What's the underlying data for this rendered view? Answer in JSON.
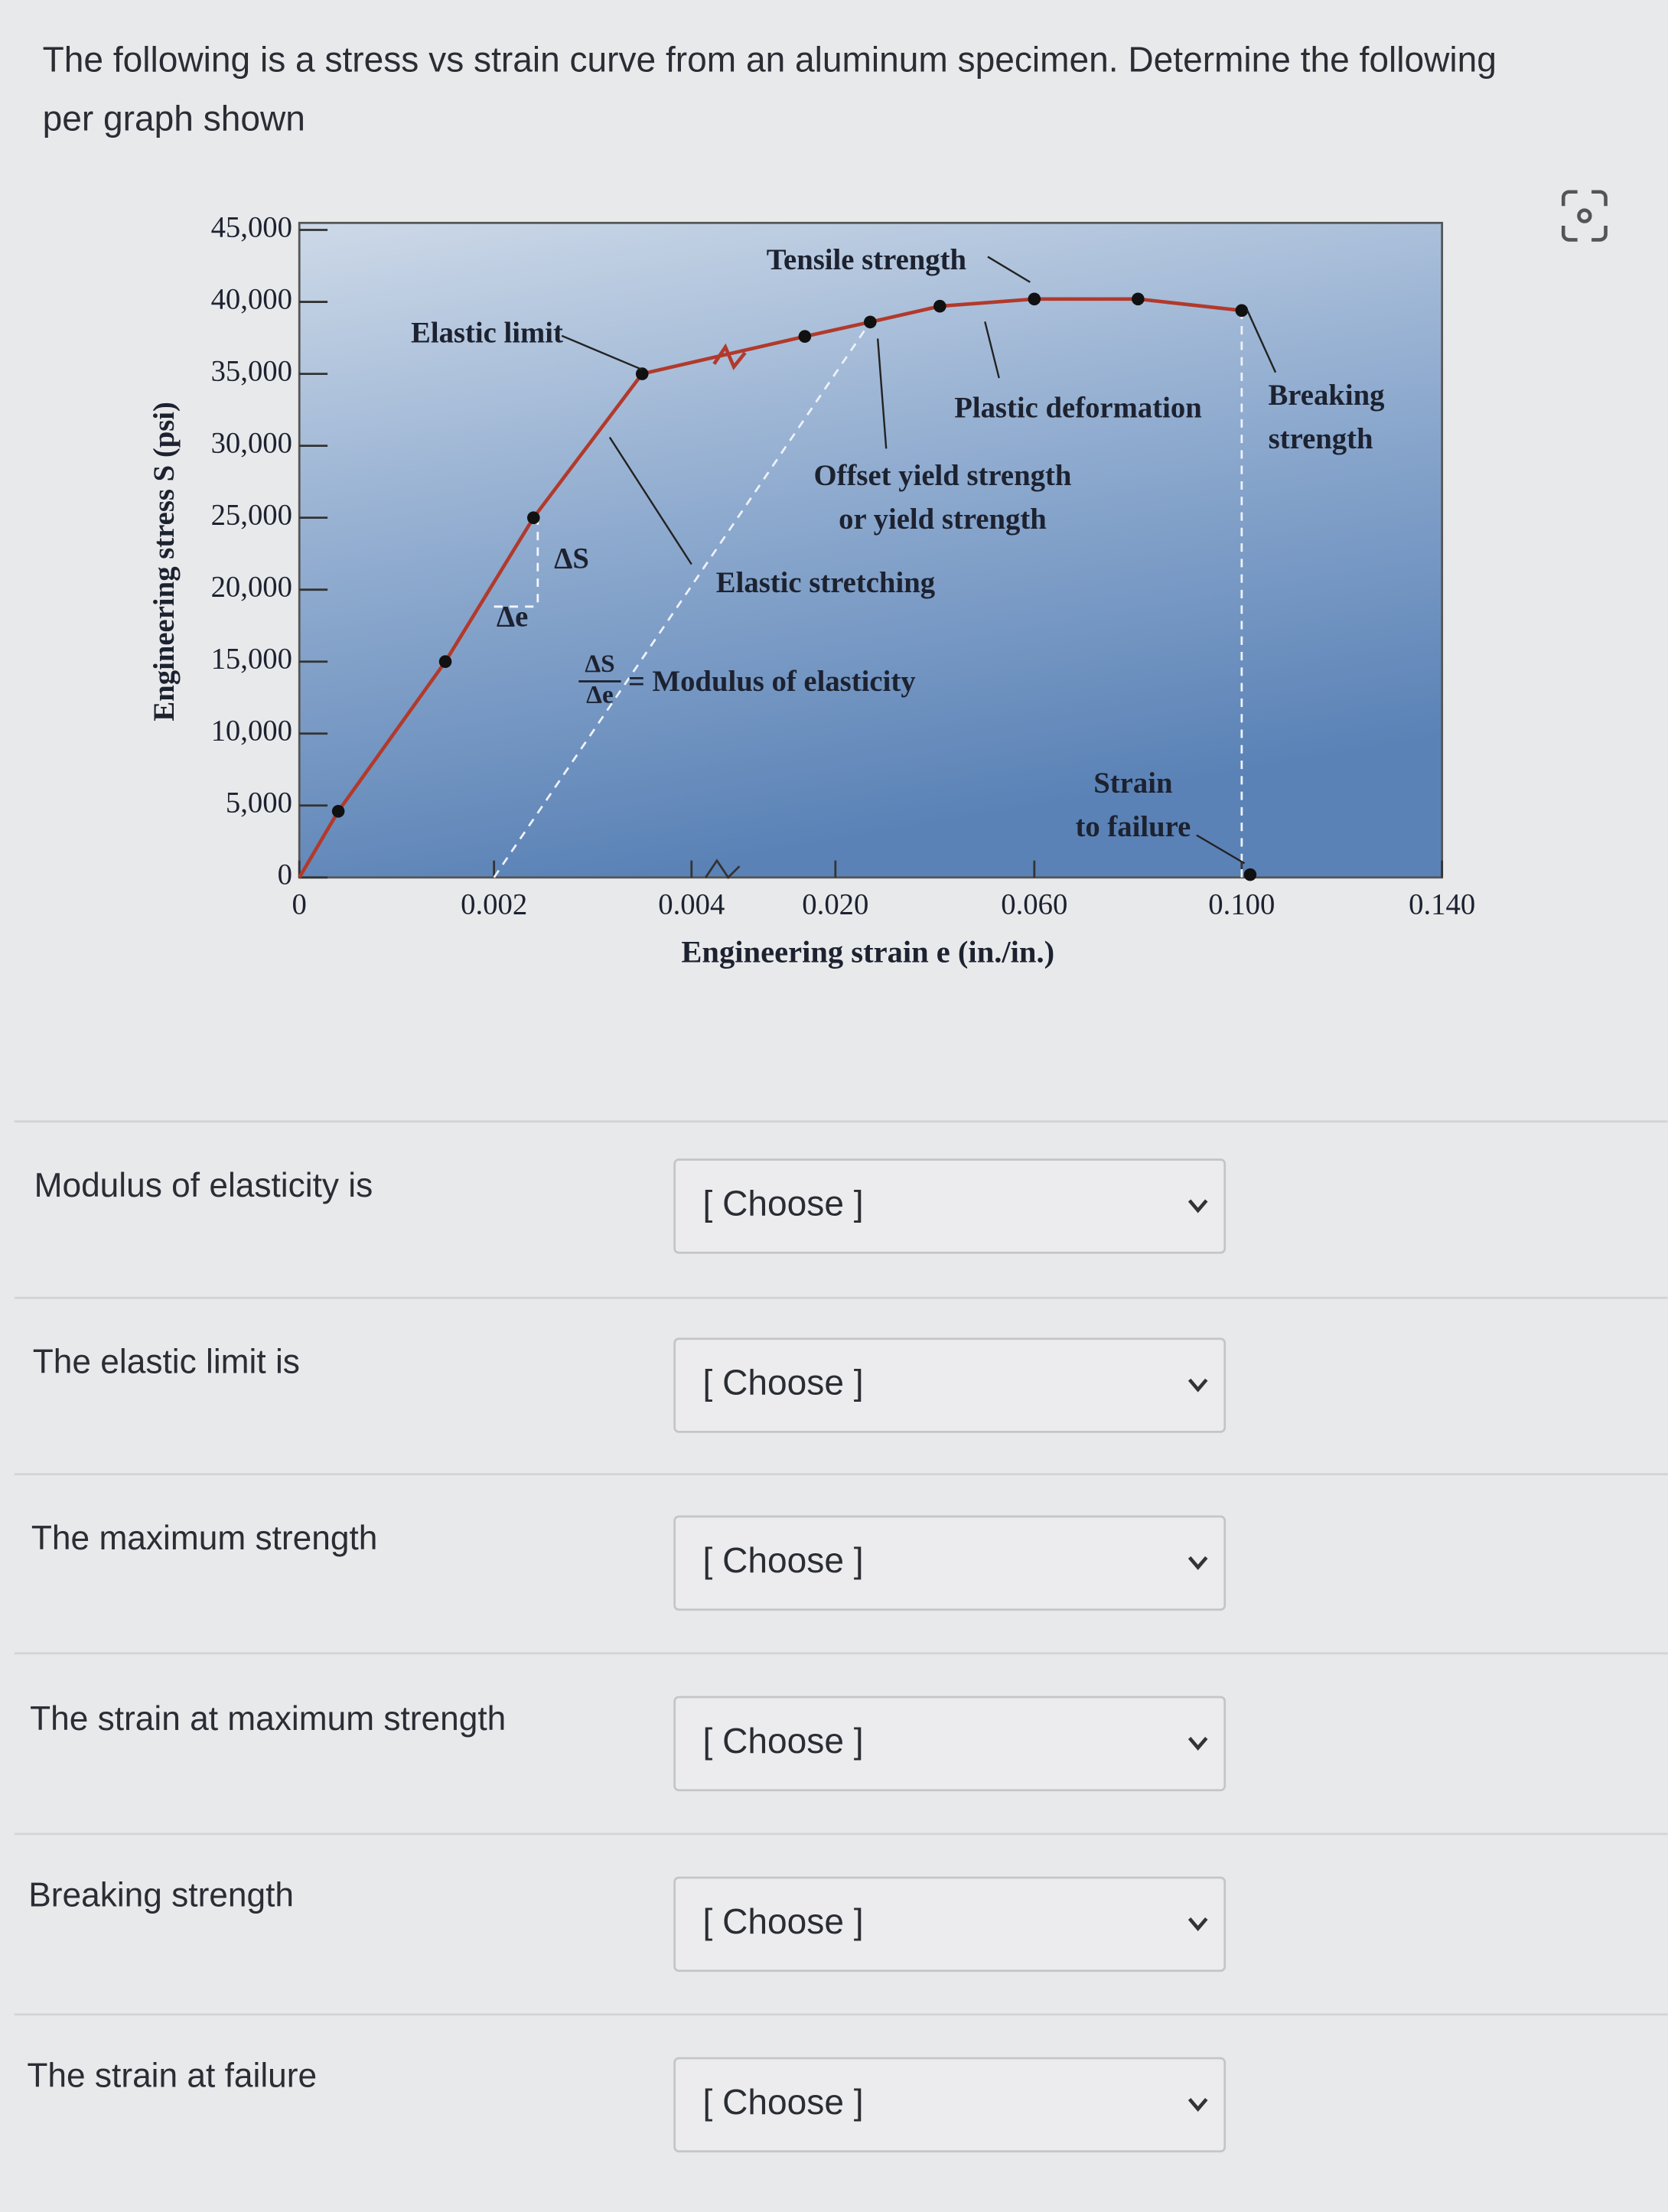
{
  "question": [
    "The following is a stress vs strain curve from an aluminum specimen. Determine the following",
    "per graph shown"
  ],
  "chart_data": {
    "type": "line",
    "ylabel": "Engineering stress S (psi)",
    "xlabel": "Engineering strain e (in./in.)",
    "xlim": [
      0,
      0.14
    ],
    "xticks": [
      0,
      0.002,
      {
        "value": 0.004,
        "label": "0.004"
      },
      {
        "value": 0.02,
        "label": "0.020"
      },
      {
        "value": 0.06,
        "label": "0.060"
      },
      {
        "value": 0.1,
        "label": "0.100"
      },
      {
        "value": 0.14,
        "label": "0.140"
      }
    ],
    "ylim": [
      0,
      45000
    ],
    "yticks": [
      {
        "value": 0,
        "label": "0"
      },
      {
        "value": 5000,
        "label": "5,000"
      },
      {
        "value": 10000,
        "label": "10,000"
      },
      {
        "value": 15000,
        "label": "15,000"
      },
      {
        "value": 20000,
        "label": "20,000"
      },
      {
        "value": 25000,
        "label": "25,000"
      },
      {
        "value": 30000,
        "label": "30,000"
      },
      {
        "value": 35000,
        "label": "35,000"
      },
      {
        "value": 40000,
        "label": "40,000"
      },
      {
        "value": 45000,
        "label": "45,000"
      }
    ],
    "x": [
      0,
      0.0004,
      0.0015,
      0.0024,
      0.0035,
      0.0166,
      0.027,
      0.041,
      0.06,
      0.08,
      0.1
    ],
    "values": [
      0,
      4600,
      15000,
      25000,
      35000,
      37600,
      38600,
      39700,
      40200,
      40200,
      39400
    ],
    "color": "#b13a2c",
    "annotations": [
      "Tensile strength",
      "Elastic limit",
      "Plastic deformation",
      "Breaking",
      "strength",
      "Offset yield strength",
      "or yield strength",
      "Elastic stretching",
      "ΔS",
      "Δe",
      "ΔS",
      "Δe",
      "= Modulus of elasticity",
      "Strain",
      "to failure"
    ]
  },
  "rows": [
    {
      "label": "Modulus of elasticity is",
      "select": "[ Choose ]"
    },
    {
      "label": "The elastic limit is",
      "select": "[ Choose ]"
    },
    {
      "label": "The maximum strength",
      "select": "[ Choose ]"
    },
    {
      "label": "The strain at maximum strength",
      "select": "[ Choose ]"
    },
    {
      "label": "Breaking strength",
      "select": "[ Choose ]"
    },
    {
      "label": "The strain at failure",
      "select": "[ Choose ]"
    }
  ]
}
